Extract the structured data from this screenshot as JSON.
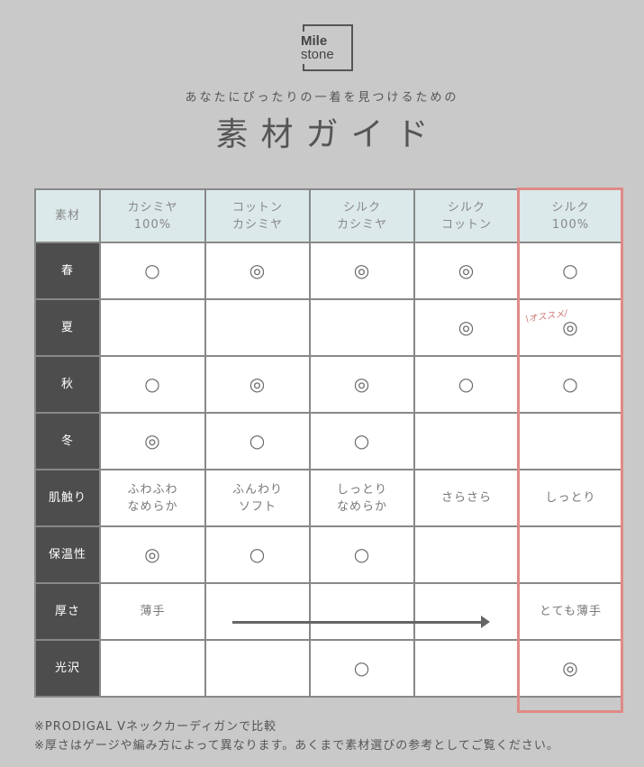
{
  "logo": {
    "line1": "Mile",
    "line2": "stone"
  },
  "subtitle": "あなたにぴったりの一着を見つけるための",
  "title": "素材ガイド",
  "table": {
    "corner": "素材",
    "columns": [
      [
        "カシミヤ",
        "100%"
      ],
      [
        "コットン",
        "カシミヤ"
      ],
      [
        "シルク",
        "カシミヤ"
      ],
      [
        "シルク",
        "コットン"
      ],
      [
        "シルク",
        "100%"
      ]
    ],
    "rows": [
      {
        "label": "春",
        "cells": [
          "○",
          "◎",
          "◎",
          "◎",
          "○"
        ]
      },
      {
        "label": "夏",
        "cells": [
          "",
          "",
          "",
          "◎",
          "◎"
        ]
      },
      {
        "label": "秋",
        "cells": [
          "○",
          "◎",
          "◎",
          "○",
          "○"
        ]
      },
      {
        "label": "冬",
        "cells": [
          "◎",
          "○",
          "○",
          "",
          ""
        ]
      },
      {
        "label": "肌触り",
        "cells": [
          [
            "ふわふわ",
            "なめらか"
          ],
          [
            "ふんわり",
            "ソフト"
          ],
          [
            "しっとり",
            "なめらか"
          ],
          [
            "さらさら"
          ],
          [
            "しっとり"
          ]
        ]
      },
      {
        "label": "保温性",
        "cells": [
          "◎",
          "○",
          "○",
          "",
          ""
        ]
      },
      {
        "label": "厚さ",
        "cells": [
          "薄手",
          "",
          "",
          "",
          "とても薄手"
        ]
      },
      {
        "label": "光沢",
        "cells": [
          "",
          "",
          "○",
          "",
          "◎"
        ]
      }
    ],
    "recommend": "\\オススメ/",
    "highlight_color": "#e08a86"
  },
  "notes": [
    "※PRODIGAL Vネックカーディガンで比較",
    "※厚さはゲージや編み方によって異なります。あくまで素材選びの参考としてご覧ください。"
  ]
}
